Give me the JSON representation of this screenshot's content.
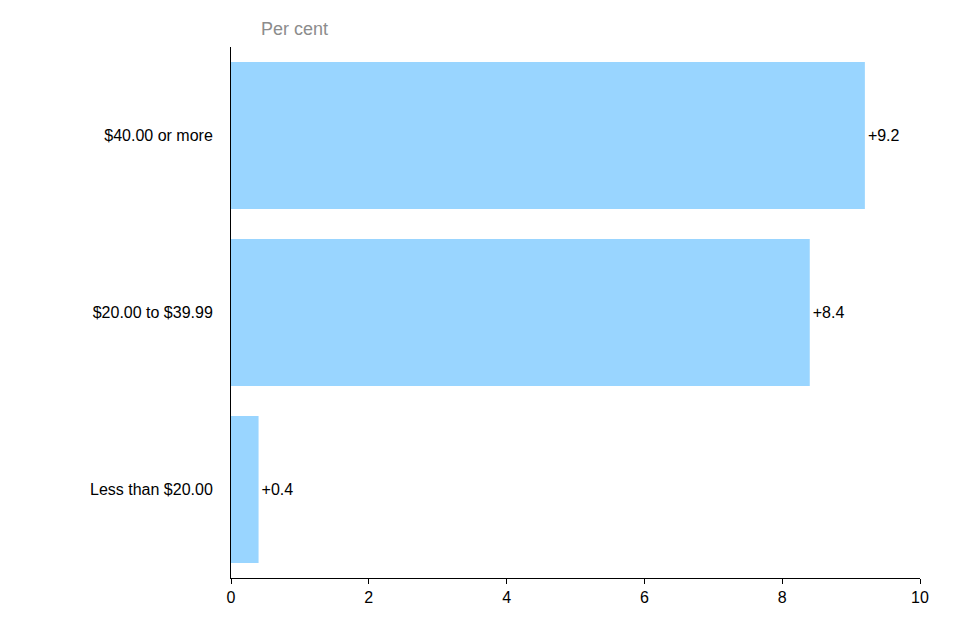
{
  "chart_data": {
    "type": "bar",
    "orientation": "horizontal",
    "x_label": "Per cent",
    "categories": [
      "$40.00 or more",
      "$20.00 to $39.99",
      "Less than $20.00"
    ],
    "values": [
      9.2,
      8.4,
      0.4
    ],
    "value_labels": [
      "+9.2",
      "+8.4",
      "+0.4"
    ],
    "data_labels": true,
    "color": "#99d5ff",
    "xlim": [
      0,
      10
    ],
    "xticks": [
      0,
      2,
      4,
      6,
      8,
      10
    ],
    "grid": false
  }
}
